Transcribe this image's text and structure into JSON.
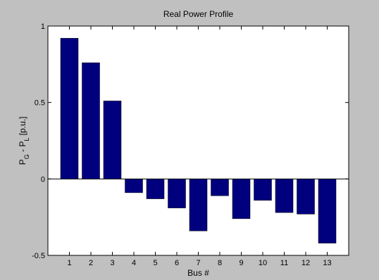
{
  "chart_data": {
    "type": "bar",
    "title": "Real Power Profile",
    "xlabel": "Bus #",
    "ylabel": "P_G - P_L [p.u.]",
    "categories": [
      "1",
      "2",
      "3",
      "4",
      "5",
      "6",
      "7",
      "8",
      "9",
      "10",
      "11",
      "12",
      "13"
    ],
    "values": [
      0.92,
      0.76,
      0.51,
      -0.09,
      -0.13,
      -0.19,
      -0.34,
      -0.11,
      -0.26,
      -0.14,
      -0.22,
      -0.23,
      -0.42
    ],
    "ylim": [
      -0.5,
      1
    ],
    "yticks": [
      -0.5,
      0,
      0.5,
      1
    ],
    "ytick_labels": [
      "-0.5",
      "0",
      "0.5",
      "1"
    ],
    "grid": false,
    "colors": {
      "bar": "#00007f",
      "figure_background": "#c0c0c0",
      "axes_background": "#ffffff",
      "axis_line": "#000000"
    }
  }
}
